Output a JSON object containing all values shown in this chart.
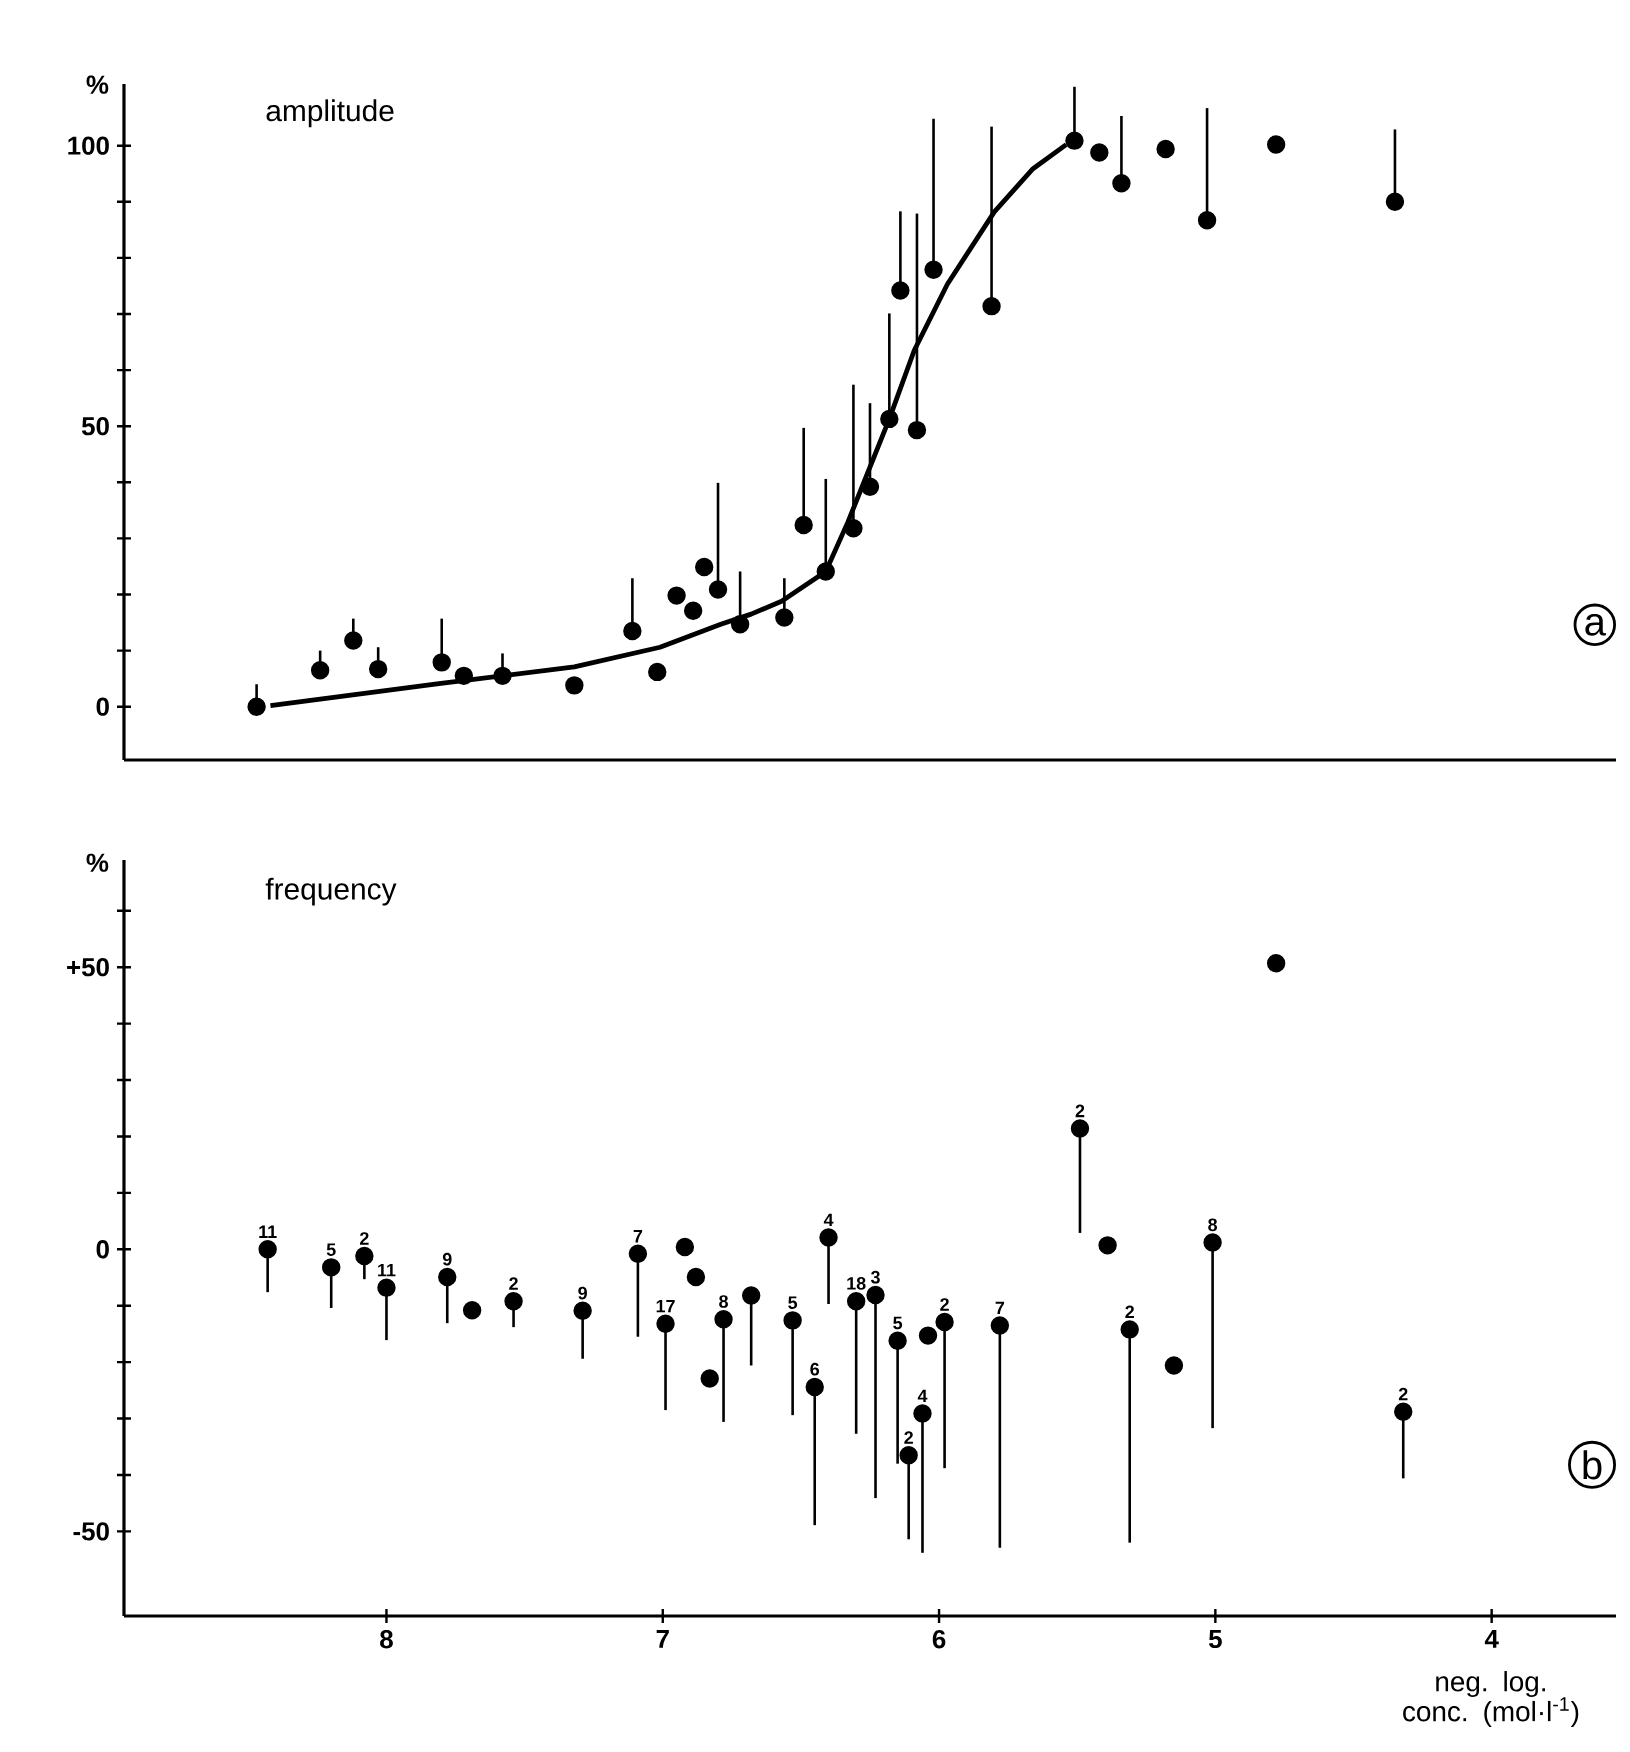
{
  "chart_data": [
    {
      "type": "scatter",
      "title": "amplitude",
      "ylabel": "%",
      "xlim": [
        8.95,
        3.55
      ],
      "ylim": [
        -9.5,
        111
      ],
      "tick_labels": "y",
      "marker": "circle",
      "yticks": [
        0,
        {
          "value": 10,
          "label": null
        },
        {
          "value": 20,
          "label": null
        },
        {
          "value": 30,
          "label": null
        },
        {
          "value": 40,
          "label": null
        },
        50,
        {
          "value": 60,
          "label": null
        },
        {
          "value": 70,
          "label": null
        },
        {
          "value": 80,
          "label": null
        },
        {
          "value": 90,
          "label": null
        },
        100
      ],
      "series": [
        {
          "color": "#000000",
          "x": [
            8.47,
            8.24,
            8.12,
            8.03,
            7.8,
            7.72,
            7.58,
            7.32,
            7.11,
            7.02,
            6.95,
            6.89,
            6.85,
            6.8,
            6.72,
            6.56,
            6.49,
            6.41,
            6.31,
            6.25,
            6.18,
            6.14,
            6.08,
            6.02,
            5.81,
            5.51,
            5.42,
            5.34,
            5.18,
            5.03,
            4.78,
            4.35
          ],
          "values": [
            0,
            6.5,
            11.8,
            6.7,
            7.9,
            5.5,
            5.5,
            3.8,
            13.5,
            6.2,
            19.8,
            17.1,
            24.9,
            20.9,
            14.7,
            15.9,
            32.4,
            24.1,
            31.8,
            39.2,
            51.3,
            74.2,
            49.3,
            77.9,
            71.4,
            100.9,
            98.8,
            93.3,
            99.4,
            86.7,
            100.2,
            90
          ],
          "errors": [
            [
              0,
              4
            ],
            [
              6.5,
              10
            ],
            [
              11.8,
              15.7
            ],
            [
              6.7,
              10.6
            ],
            [
              7.9,
              15.7
            ],
            null,
            [
              5.5,
              9.5
            ],
            null,
            [
              13.5,
              22.9
            ],
            null,
            null,
            null,
            null,
            [
              20.9,
              39.9
            ],
            [
              14.7,
              24.1
            ],
            [
              15.9,
              22.9
            ],
            [
              32.4,
              49.7
            ],
            [
              24.1,
              40.6
            ],
            [
              31.8,
              57.4
            ],
            [
              39.2,
              54.1
            ],
            [
              51.3,
              70.1
            ],
            [
              74.2,
              88.3
            ],
            [
              49.3,
              87.9
            ],
            [
              77.9,
              104.8
            ],
            [
              71.4,
              103.4
            ],
            [
              100.9,
              110.5
            ],
            null,
            [
              93.3,
              105.3
            ],
            null,
            [
              86.7,
              106.7
            ],
            null,
            [
              90,
              102.9
            ]
          ]
        },
        {
          "type": "line",
          "marker": "none",
          "line_style": "solid",
          "color": "#000000",
          "x": [
            8.42,
            7.81,
            7.32,
            7.01,
            6.79,
            6.68,
            6.57,
            6.41,
            6.33,
            6.18,
            6.09,
            5.97,
            5.8,
            5.66,
            5.54
          ],
          "values": [
            0.2,
            4.1,
            7.1,
            10.6,
            14.7,
            16.5,
            18.8,
            24.1,
            32.9,
            51.3,
            63.5,
            75.3,
            88.2,
            95.9,
            100.2
          ]
        }
      ],
      "annotations": [
        "a"
      ]
    },
    {
      "type": "scatter",
      "title": "frequency",
      "ylabel": "%",
      "xlabel": "neg. log. conc. (mol·l$^{-1}$)",
      "xlim": [
        8.95,
        3.55
      ],
      "ylim": [
        -65,
        69
      ],
      "marker": "circle",
      "xticks": [
        8,
        7,
        6,
        5,
        4
      ],
      "yticks": [
        -50,
        {
          "value": -40,
          "label": null
        },
        {
          "value": -30,
          "label": null
        },
        {
          "value": -20,
          "label": null
        },
        {
          "value": -10,
          "label": null
        },
        0,
        {
          "value": 10,
          "label": null
        },
        {
          "value": 20,
          "label": null
        },
        {
          "value": 30,
          "label": null
        },
        {
          "value": 40,
          "label": null
        },
        {
          "value": 50,
          "label": "+50"
        },
        {
          "value": 60,
          "label": null
        }
      ],
      "series": [
        {
          "color": "#000000",
          "x": [
            8.43,
            8.2,
            8.08,
            8.0,
            7.78,
            7.69,
            7.54,
            7.29,
            7.09,
            6.99,
            6.92,
            6.88,
            6.83,
            6.78,
            6.68,
            6.53,
            6.45,
            6.4,
            6.3,
            6.23,
            6.15,
            6.11,
            6.06,
            6.04,
            5.98,
            5.78,
            5.49,
            5.39,
            5.31,
            5.15,
            5.01,
            4.78,
            4.32
          ],
          "values": [
            0,
            -3.2,
            -1.2,
            -6.8,
            -4.9,
            -10.8,
            -9.2,
            -10.9,
            -0.8,
            -13.2,
            0.4,
            -4.9,
            -22.9,
            -12.4,
            -8.2,
            -12.6,
            -24.4,
            2.1,
            -9.2,
            -8.1,
            -16.2,
            -36.5,
            -29.1,
            -15.3,
            -12.9,
            -13.5,
            21.4,
            0.7,
            -14.2,
            -20.6,
            1.2,
            50.7,
            -28.8
          ],
          "errors": [
            [
              -7.6,
              0
            ],
            [
              -10.4,
              -3.2
            ],
            [
              -5.3,
              -1.2
            ],
            [
              -16.1,
              -6.8
            ],
            [
              -13.1,
              -4.9
            ],
            null,
            [
              -13.8,
              -9.2
            ],
            [
              -19.4,
              -10.9
            ],
            [
              -15.5,
              -0.8
            ],
            [
              -28.5,
              -13.2
            ],
            null,
            null,
            null,
            [
              -30.6,
              -12.4
            ],
            [
              -20.6,
              -8.2
            ],
            [
              -29.4,
              -12.6
            ],
            [
              -48.9,
              -24.4
            ],
            [
              -9.7,
              2.1
            ],
            [
              -32.7,
              -9.2
            ],
            [
              -44.1,
              -8.1
            ],
            [
              -38,
              -16.2
            ],
            [
              -51.4,
              -36.5
            ],
            [
              -53.8,
              -29.1
            ],
            null,
            [
              -38.8,
              -12.9
            ],
            [
              -52.9,
              -13.5
            ],
            [
              2.9,
              21.4
            ],
            null,
            [
              -52,
              -14.2
            ],
            null,
            [
              -31.7,
              1.2
            ],
            null,
            [
              -40.6,
              -28.8
            ]
          ]
        }
      ],
      "annotations": [
        "b",
        {
          "text": "11",
          "x": 8.43,
          "y": 0
        },
        {
          "text": "5",
          "x": 8.2,
          "y": -3.2
        },
        {
          "text": "2",
          "x": 8.08,
          "y": -1.2
        },
        {
          "text": "11",
          "x": 8.0,
          "y": -6.8
        },
        {
          "text": "9",
          "x": 7.78,
          "y": -4.9
        },
        {
          "text": "2",
          "x": 7.54,
          "y": -9.2
        },
        {
          "text": "9",
          "x": 7.29,
          "y": -10.9
        },
        {
          "text": "7",
          "x": 7.09,
          "y": -0.8
        },
        {
          "text": "17",
          "x": 6.99,
          "y": -13.2
        },
        {
          "text": "8",
          "x": 6.78,
          "y": -12.4
        },
        {
          "text": "5",
          "x": 6.53,
          "y": -12.6
        },
        {
          "text": "6",
          "x": 6.45,
          "y": -24.4
        },
        {
          "text": "4",
          "x": 6.4,
          "y": 2.1
        },
        {
          "text": "18",
          "x": 6.3,
          "y": -9.2
        },
        {
          "text": "3",
          "x": 6.23,
          "y": -8.1
        },
        {
          "text": "5",
          "x": 6.15,
          "y": -16.2
        },
        {
          "text": "2",
          "x": 6.11,
          "y": -36.5
        },
        {
          "text": "4",
          "x": 6.06,
          "y": -29.1
        },
        {
          "text": "2",
          "x": 5.98,
          "y": -12.9
        },
        {
          "text": "7",
          "x": 5.78,
          "y": -13.5
        },
        {
          "text": "2",
          "x": 5.49,
          "y": 21.4
        },
        {
          "text": "2",
          "x": 5.31,
          "y": -14.2
        },
        {
          "text": "8",
          "x": 5.01,
          "y": 1.2
        },
        {
          "text": "2",
          "x": 4.32,
          "y": -28.8
        }
      ]
    }
  ]
}
